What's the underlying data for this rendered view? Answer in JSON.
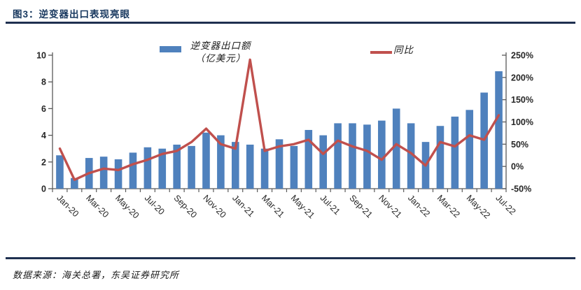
{
  "header": {
    "title": "图3：逆变器出口表现亮眼"
  },
  "legend": {
    "bar_label_line1": "逆变器出口额",
    "bar_label_line2": "（亿美元）",
    "line_label": "同比"
  },
  "footer": {
    "source": "数据来源：海关总署，东吴证券研究所"
  },
  "colors": {
    "bar": "#4f81bd",
    "line": "#c0504d",
    "title": "#17375e",
    "rule": "#1f3050",
    "axis": "#595959",
    "tick_text": "#262626"
  },
  "chart_data": {
    "type": "bar",
    "title": "图3：逆变器出口表现亮眼",
    "subtitle": "",
    "grid": false,
    "legend_position": "top",
    "categories": [
      "Jan-20",
      "Feb-20",
      "Mar-20",
      "Apr-20",
      "May-20",
      "Jun-20",
      "Jul-20",
      "Aug-20",
      "Sep-20",
      "Oct-20",
      "Nov-20",
      "Dec-20",
      "Jan-21",
      "Feb-21",
      "Mar-21",
      "Apr-21",
      "May-21",
      "Jun-21",
      "Jul-21",
      "Aug-21",
      "Sep-21",
      "Oct-21",
      "Nov-21",
      "Dec-21",
      "Jan-22",
      "Feb-22",
      "Mar-22",
      "Apr-22",
      "May-22",
      "Jun-22",
      "Jul-22"
    ],
    "x_tick_labels": [
      "Jan-20",
      "Mar-20",
      "May-20",
      "Jul-20",
      "Sep-20",
      "Nov-20",
      "Jan-21",
      "Mar-21",
      "May-21",
      "Jul-21",
      "Sep-21",
      "Nov-21",
      "Jan-22",
      "Mar-22",
      "May-22",
      "Jul-22"
    ],
    "x_labels_shown_every": 2,
    "series": [
      {
        "name": "逆变器出口额（亿美元）",
        "type": "bar",
        "axis": "left",
        "color": "#4f81bd",
        "values": [
          2.5,
          0.8,
          2.3,
          2.4,
          2.2,
          2.7,
          3.1,
          3.0,
          3.3,
          3.2,
          4.2,
          4.0,
          3.5,
          3.3,
          3.0,
          3.7,
          3.2,
          4.4,
          4.0,
          4.9,
          4.9,
          4.8,
          5.1,
          6.0,
          4.9,
          3.5,
          4.7,
          5.4,
          5.9,
          7.2,
          8.8
        ]
      },
      {
        "name": "同比",
        "type": "line",
        "axis": "right",
        "color": "#c0504d",
        "unit": "%",
        "values": [
          40,
          -30,
          -15,
          -5,
          -8,
          5,
          15,
          28,
          35,
          55,
          85,
          50,
          40,
          240,
          35,
          45,
          50,
          60,
          28,
          58,
          45,
          35,
          15,
          50,
          30,
          2,
          55,
          45,
          70,
          60,
          115
        ]
      }
    ],
    "left_axis": {
      "min": 0,
      "max": 10,
      "ticks": [
        0,
        2,
        4,
        6,
        8,
        10
      ]
    },
    "right_axis": {
      "min": -50,
      "max": 250,
      "ticks": [
        -50,
        0,
        50,
        100,
        150,
        200,
        250
      ],
      "suffix": "%"
    }
  }
}
